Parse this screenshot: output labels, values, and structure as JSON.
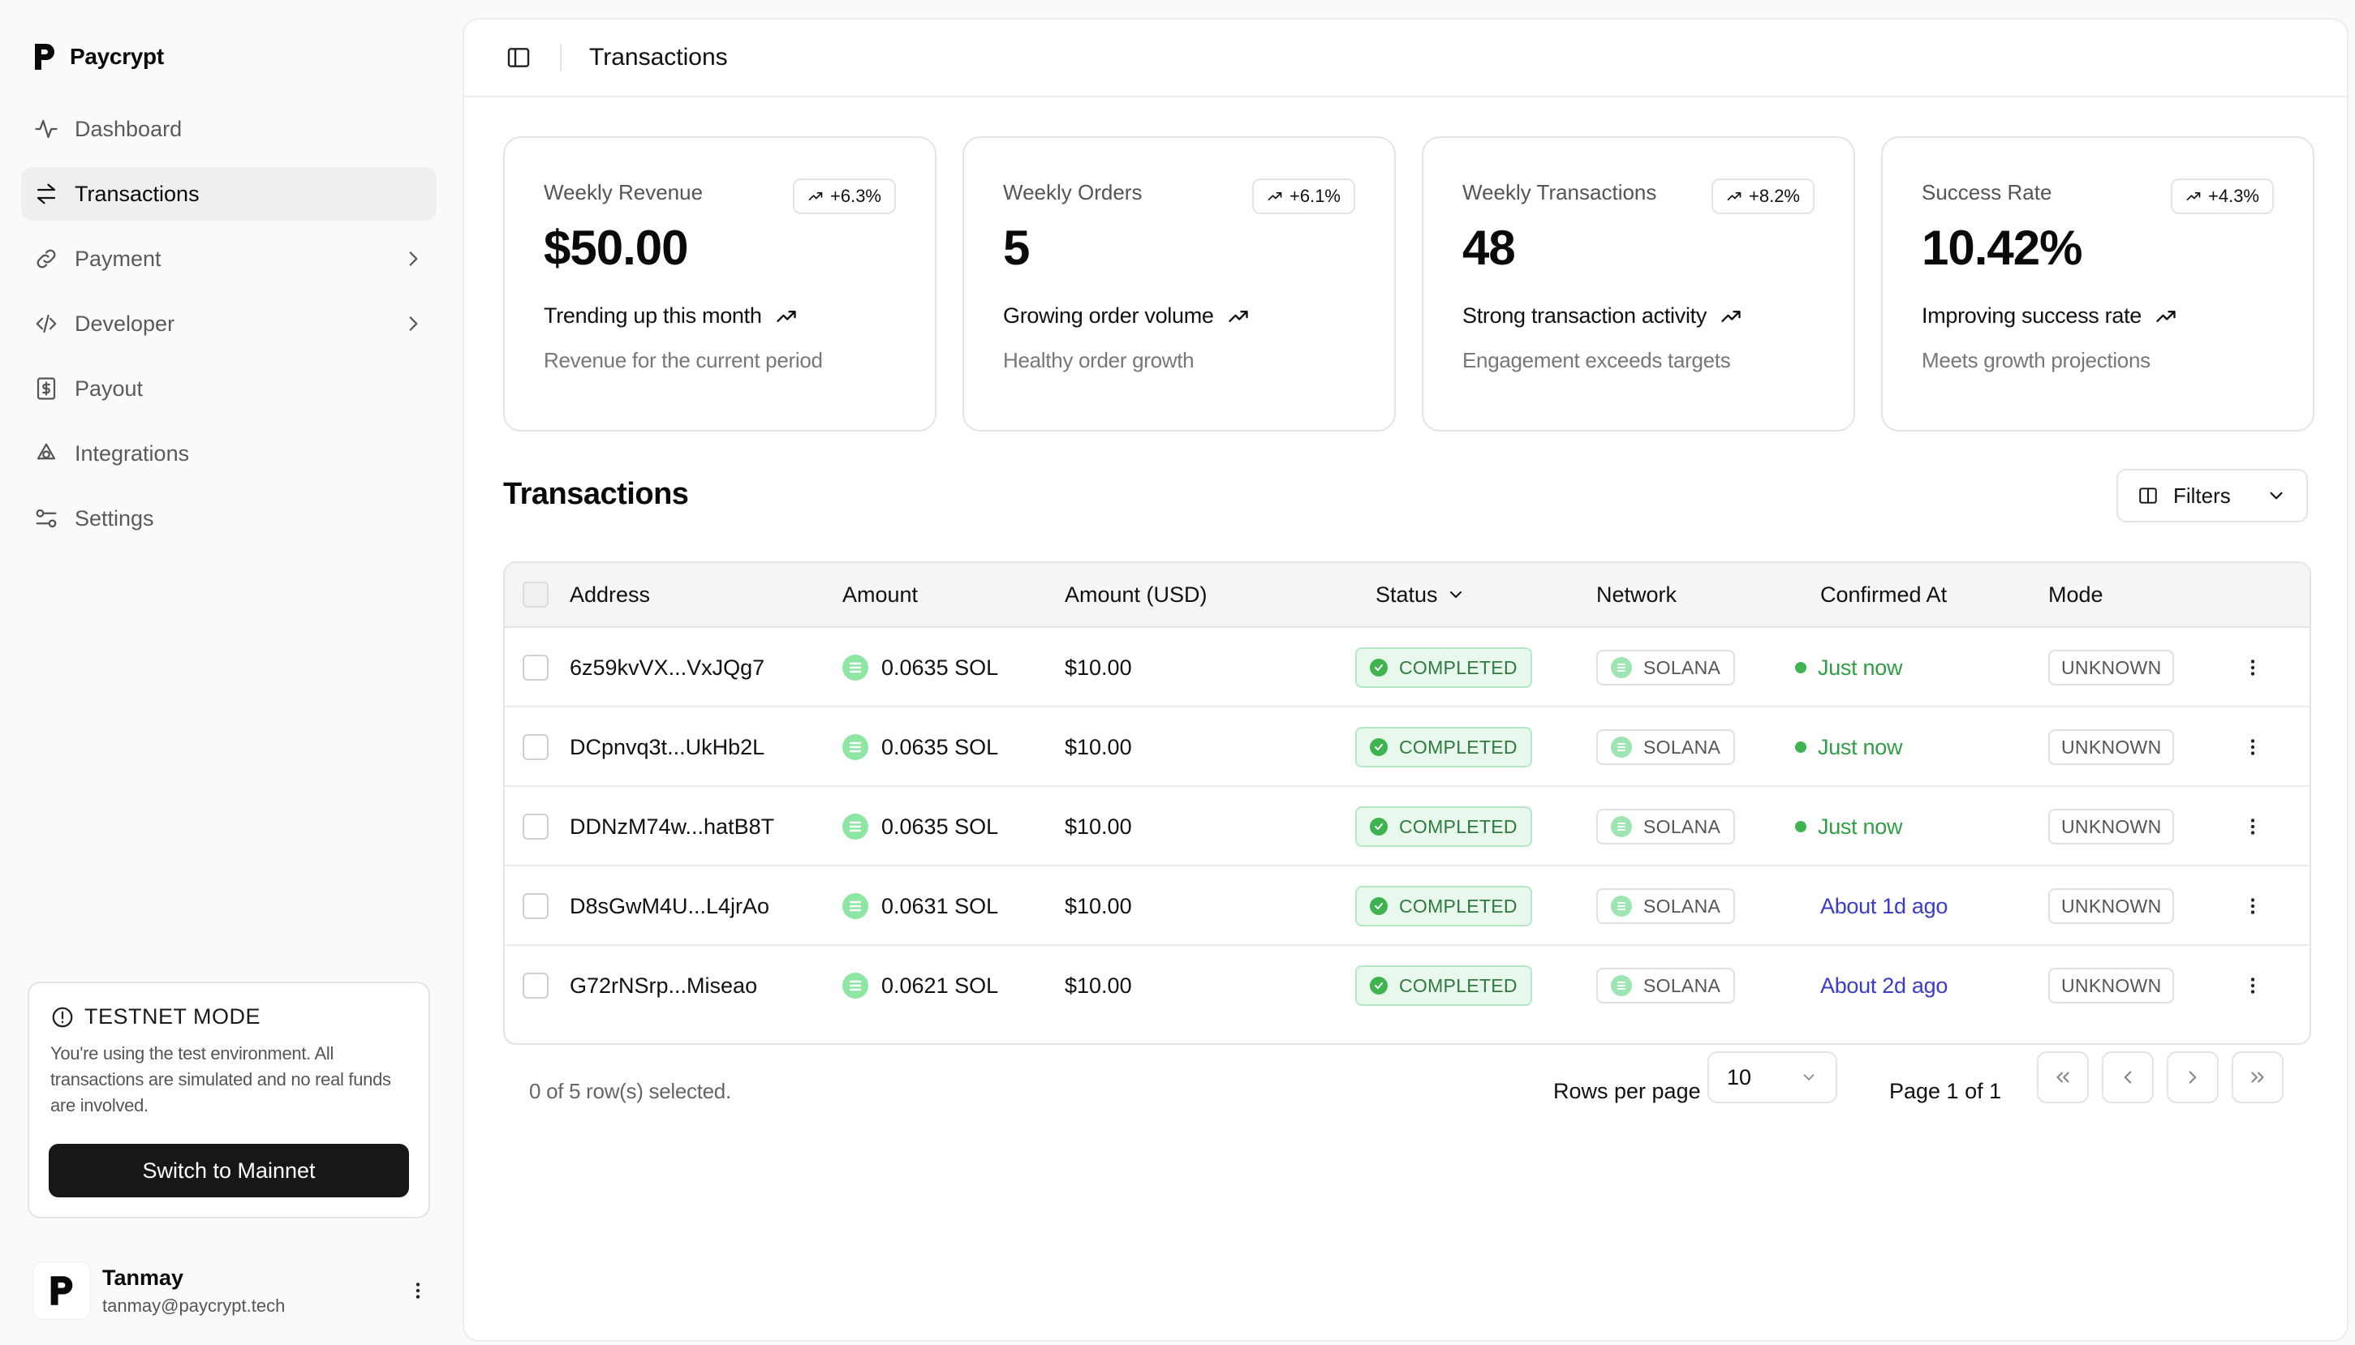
{
  "brand": {
    "name": "Paycrypt"
  },
  "sidebar": {
    "items": [
      {
        "label": "Dashboard"
      },
      {
        "label": "Transactions"
      },
      {
        "label": "Payment"
      },
      {
        "label": "Developer"
      },
      {
        "label": "Payout"
      },
      {
        "label": "Integrations"
      },
      {
        "label": "Settings"
      }
    ],
    "testnet": {
      "title": "TESTNET MODE",
      "description": "You're using the test environment. All transactions are simulated and no real funds are involved.",
      "button": "Switch to Mainnet"
    },
    "user": {
      "name": "Tanmay",
      "email": "tanmay@paycrypt.tech"
    }
  },
  "header": {
    "title": "Transactions"
  },
  "cards": [
    {
      "label": "Weekly Revenue",
      "badge": "+6.3%",
      "value": "$50.00",
      "trend": "Trending up this month",
      "sub": "Revenue for the current period"
    },
    {
      "label": "Weekly Orders",
      "badge": "+6.1%",
      "value": "5",
      "trend": "Growing order volume",
      "sub": "Healthy order growth"
    },
    {
      "label": "Weekly Transactions",
      "badge": "+8.2%",
      "value": "48",
      "trend": "Strong transaction activity",
      "sub": "Engagement exceeds targets"
    },
    {
      "label": "Success Rate",
      "badge": "+4.3%",
      "value": "10.42%",
      "trend": "Improving success rate",
      "sub": "Meets growth projections"
    }
  ],
  "transactions": {
    "title": "Transactions",
    "filters_label": "Filters",
    "columns": {
      "address": "Address",
      "amount": "Amount",
      "amount_usd": "Amount (USD)",
      "status": "Status",
      "network": "Network",
      "confirmed_at": "Confirmed At",
      "mode": "Mode"
    },
    "rows": [
      {
        "address": "6z59kvVX...VxJQg7",
        "amount": "0.0635 SOL",
        "usd": "$10.00",
        "status": "COMPLETED",
        "network": "SOLANA",
        "confirmed": "Just now",
        "mode": "UNKNOWN"
      },
      {
        "address": "DCpnvq3t...UkHb2L",
        "amount": "0.0635 SOL",
        "usd": "$10.00",
        "status": "COMPLETED",
        "network": "SOLANA",
        "confirmed": "Just now",
        "mode": "UNKNOWN"
      },
      {
        "address": "DDNzM74w...hatB8T",
        "amount": "0.0635 SOL",
        "usd": "$10.00",
        "status": "COMPLETED",
        "network": "SOLANA",
        "confirmed": "Just now",
        "mode": "UNKNOWN"
      },
      {
        "address": "D8sGwM4U...L4jrAo",
        "amount": "0.0631 SOL",
        "usd": "$10.00",
        "status": "COMPLETED",
        "network": "SOLANA",
        "confirmed": "About 1d ago",
        "mode": "UNKNOWN"
      },
      {
        "address": "G72rNSrp...Miseao",
        "amount": "0.0621 SOL",
        "usd": "$10.00",
        "status": "COMPLETED",
        "network": "SOLANA",
        "confirmed": "About 2d ago",
        "mode": "UNKNOWN"
      }
    ],
    "footer": {
      "selected": "0 of 5 row(s) selected.",
      "rows_per_page_label": "Rows per page",
      "rows_per_page_value": "10",
      "page_label": "Page 1 of 1"
    }
  },
  "colors": {
    "accent_green": "#3fb34f",
    "link_blue": "#3b3bcc",
    "dark": "#171717"
  }
}
